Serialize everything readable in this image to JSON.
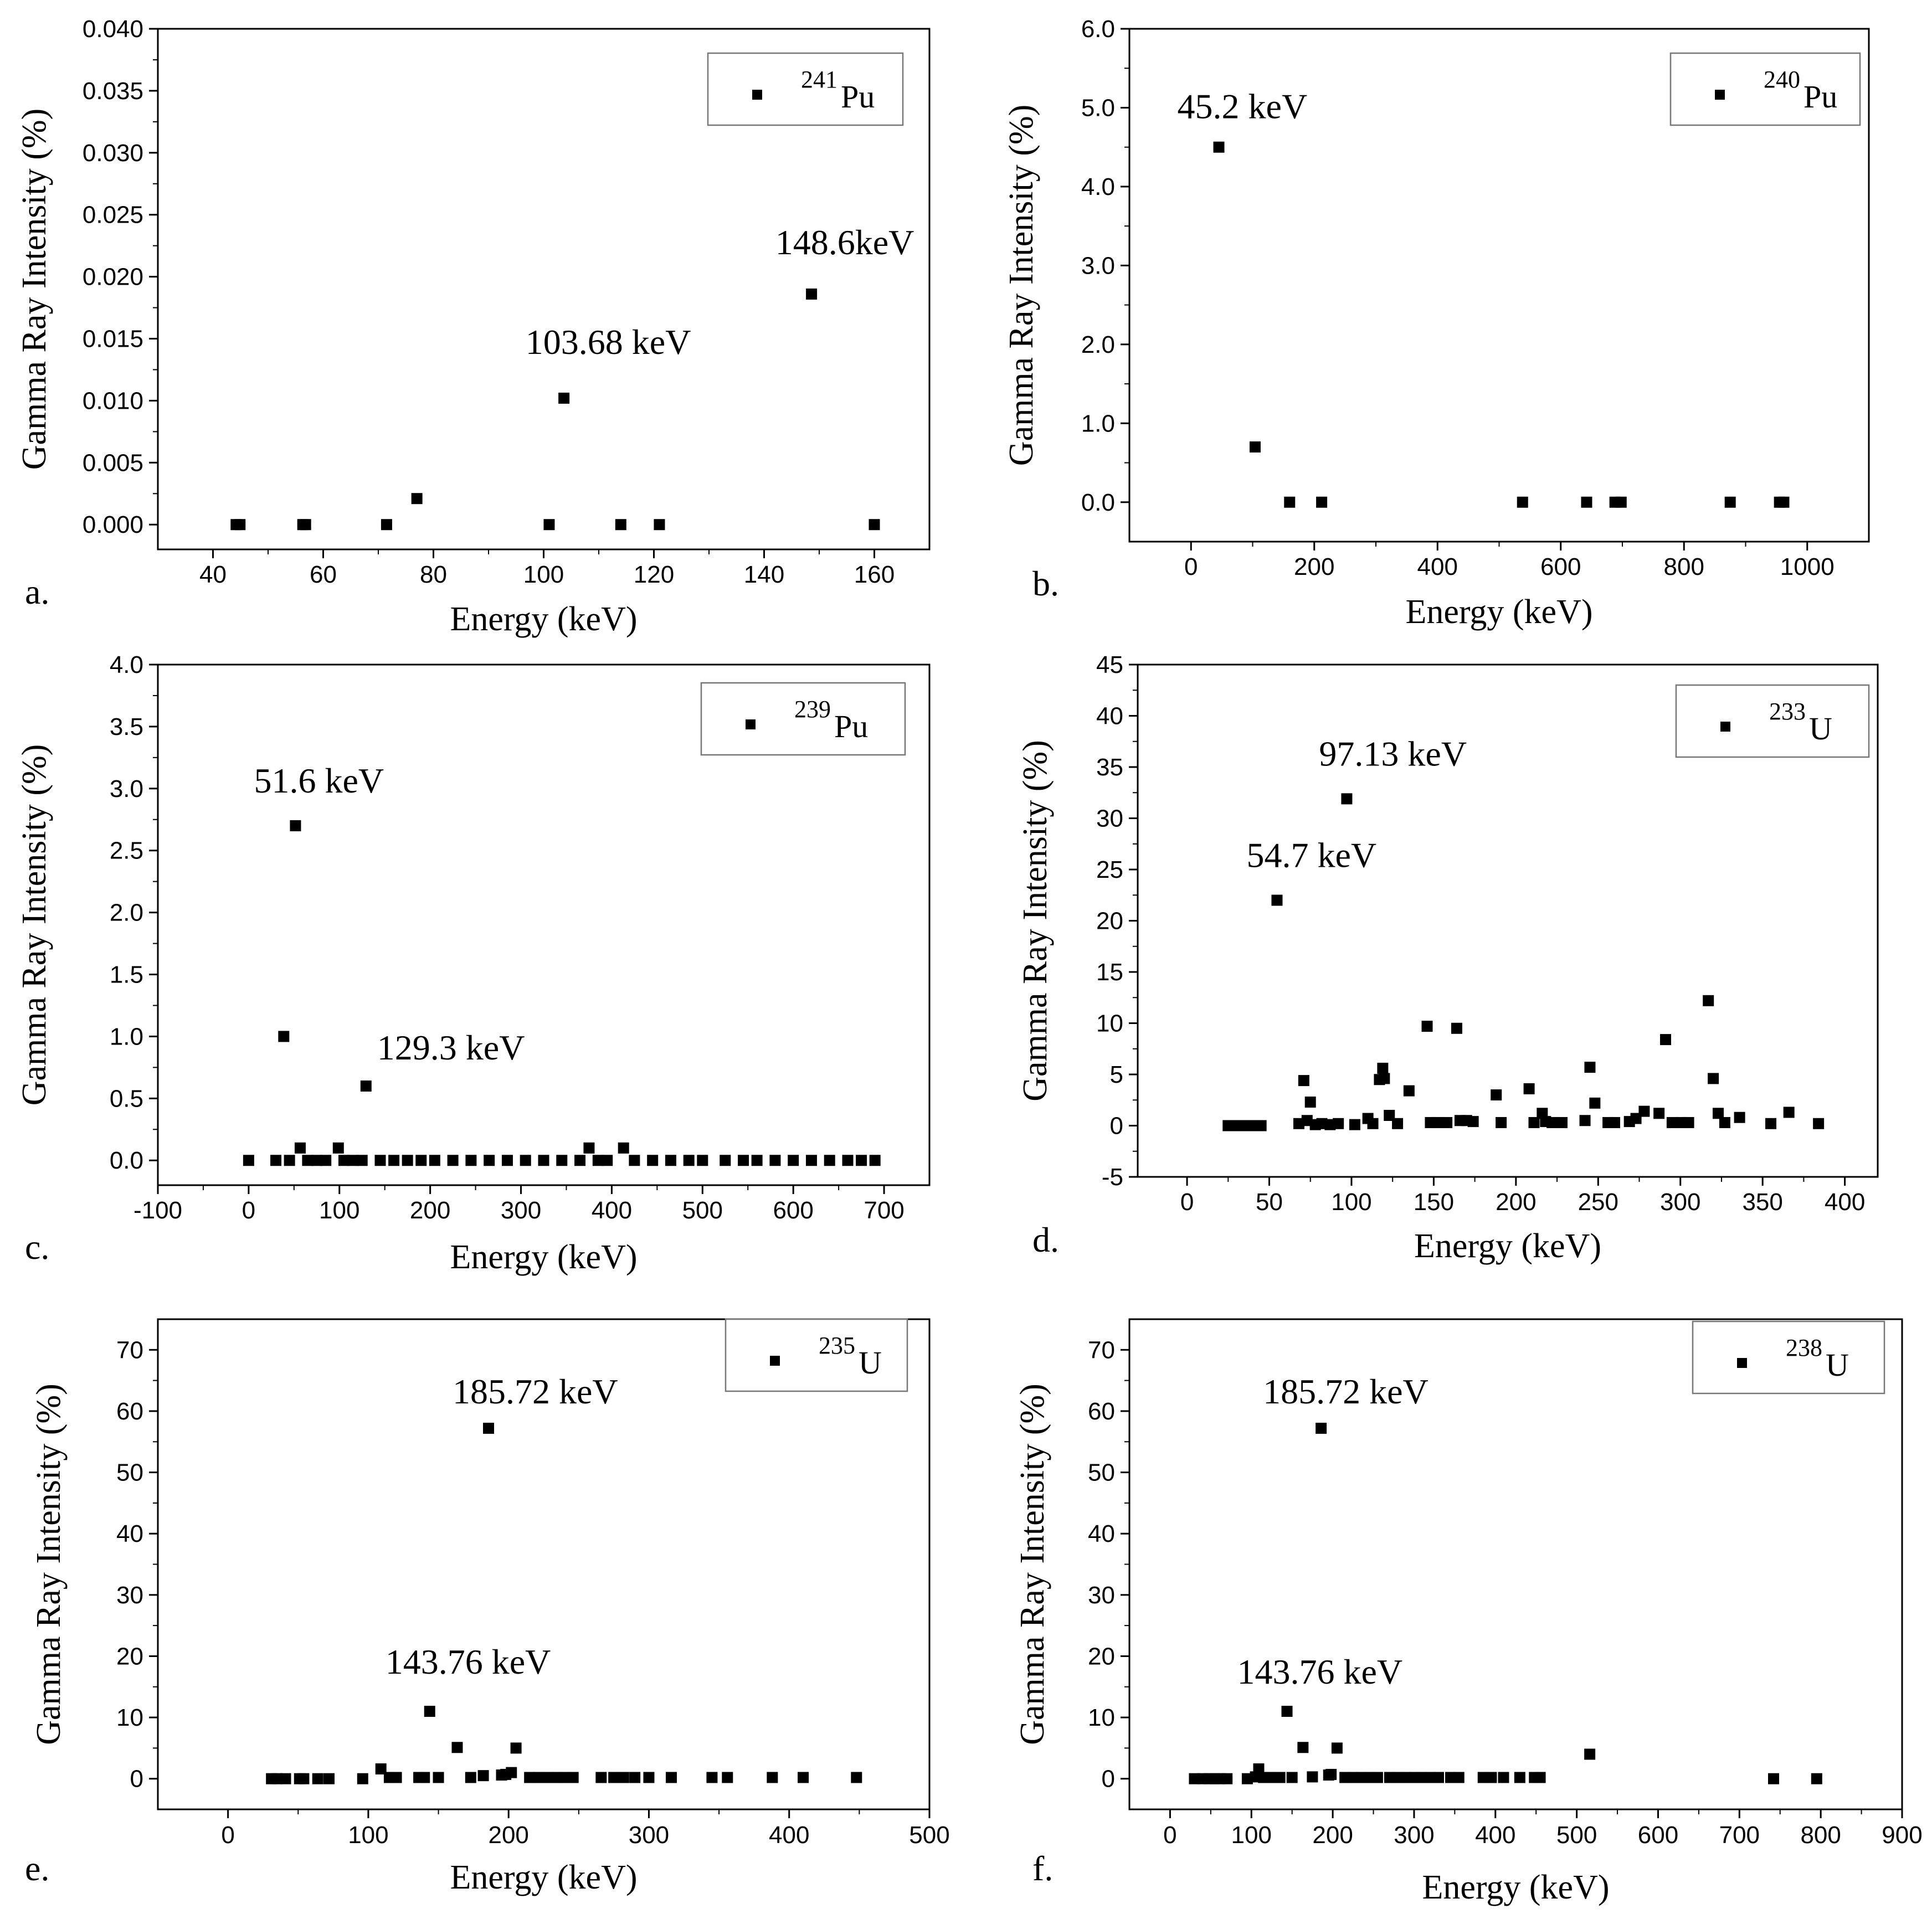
{
  "figure": {
    "panels": [
      {
        "id": "a",
        "label": "a.",
        "nuclide_mass": "241",
        "nuclide_symbol": "Pu",
        "y_label": "Gamma Ray Intensity (%)",
        "x_label": "Energy (keV)"
      },
      {
        "id": "b",
        "label": "b.",
        "nuclide_mass": "240",
        "nuclide_symbol": "Pu",
        "y_label": "Gamma Ray Intensity (%)",
        "x_label": "Energy (keV)"
      },
      {
        "id": "c",
        "label": "c.",
        "nuclide_mass": "239",
        "nuclide_symbol": "Pu",
        "y_label": "Gamma Ray Intensity (%)",
        "x_label": "Energy (keV)"
      },
      {
        "id": "d",
        "label": "d.",
        "nuclide_mass": "233",
        "nuclide_symbol": "U",
        "y_label": "Gamma Ray Intensity (%)",
        "x_label": "Energy (keV)"
      },
      {
        "id": "e",
        "label": "e.",
        "nuclide_mass": "235",
        "nuclide_symbol": "U",
        "y_label": "Gamma Ray Intensity (%)",
        "x_label": "Energy (keV)"
      },
      {
        "id": "f",
        "label": "f.",
        "nuclide_mass": "238",
        "nuclide_symbol": "U",
        "y_label": "Gamma Ray Intensity (%)",
        "x_label": "Energy (keV)"
      }
    ]
  },
  "chart_data": [
    {
      "type": "scatter",
      "panel": "a",
      "title": "",
      "xlabel": "Energy (keV)",
      "ylabel": "Gamma Ray Intensity (%)",
      "xlim": [
        30,
        170
      ],
      "ylim": [
        -0.002,
        0.04
      ],
      "xticks": [
        40,
        60,
        80,
        100,
        120,
        140,
        160
      ],
      "yticks": [
        0.0,
        0.005,
        0.01,
        0.015,
        0.02,
        0.025,
        0.03,
        0.035,
        0.04
      ],
      "ytick_labels": [
        "0.000",
        "0.005",
        "0.010",
        "0.015",
        "0.020",
        "0.025",
        "0.030",
        "0.035",
        "0.040"
      ],
      "legend": "241Pu",
      "legend_position": "top-right",
      "series": [
        {
          "name": "241Pu",
          "x": [
            44.2,
            44.9,
            56.3,
            56.8,
            71.5,
            77.0,
            101.0,
            103.68,
            114.0,
            121.0,
            148.6,
            160.0
          ],
          "y": [
            0,
            0,
            0,
            0,
            0,
            0.0021,
            0,
            0.0102,
            0,
            0,
            0.0186,
            0
          ]
        }
      ],
      "annotations": [
        {
          "text": "103.68 keV",
          "x": 103.68,
          "y": 0.0102
        },
        {
          "text": "148.6keV",
          "x": 148.6,
          "y": 0.0186
        }
      ]
    },
    {
      "type": "scatter",
      "panel": "b",
      "title": "",
      "xlabel": "Energy (keV)",
      "ylabel": "Gamma Ray Intensity (%)",
      "xlim": [
        -100,
        1100
      ],
      "ylim": [
        -0.5,
        6.0
      ],
      "xticks": [
        0,
        200,
        400,
        600,
        800,
        1000
      ],
      "yticks": [
        0,
        1,
        2,
        3,
        4,
        5,
        6
      ],
      "ytick_labels": [
        "0.0",
        "1.0",
        "2.0",
        "3.0",
        "4.0",
        "5.0",
        "6.0"
      ],
      "legend": "240Pu",
      "legend_position": "top-right",
      "series": [
        {
          "name": "240Pu",
          "x": [
            45.2,
            104,
            160,
            212,
            538,
            642,
            688,
            698,
            875,
            955,
            962
          ],
          "y": [
            4.5,
            0.7,
            0,
            0,
            0,
            0,
            0,
            0,
            0,
            0,
            0
          ]
        }
      ],
      "annotations": [
        {
          "text": "45.2 keV",
          "x": 45.2,
          "y": 4.5
        }
      ]
    },
    {
      "type": "scatter",
      "panel": "c",
      "title": "",
      "xlabel": "Energy (keV)",
      "ylabel": "Gamma Ray Intensity (%)",
      "xlim": [
        -100,
        750
      ],
      "ylim": [
        -0.2,
        4.0
      ],
      "xticks": [
        -100,
        0,
        100,
        200,
        300,
        400,
        500,
        600,
        700
      ],
      "yticks": [
        0,
        0.5,
        1.0,
        1.5,
        2.0,
        2.5,
        3.0,
        3.5,
        4.0
      ],
      "ytick_labels": [
        "0.0",
        "0.5",
        "1.0",
        "1.5",
        "2.0",
        "2.5",
        "3.0",
        "3.5",
        "4.0"
      ],
      "legend": "239Pu",
      "legend_position": "top-right",
      "series": [
        {
          "name": "239Pu",
          "x": [
            0,
            30,
            38.7,
            45,
            51.6,
            56.8,
            65,
            75,
            85,
            98.8,
            105,
            115,
            125,
            129.3,
            145,
            160,
            175,
            190,
            205,
            225,
            245,
            265,
            285,
            305,
            325,
            345,
            365,
            375,
            385,
            395,
            413,
            425,
            445,
            465,
            485,
            500,
            525,
            545,
            560,
            580,
            600,
            620,
            640,
            660,
            675,
            690
          ],
          "y": [
            0,
            0,
            1.0,
            0,
            2.7,
            0.1,
            0,
            0,
            0,
            0.1,
            0,
            0,
            0,
            0.6,
            0,
            0,
            0,
            0,
            0,
            0,
            0,
            0,
            0,
            0,
            0,
            0,
            0,
            0.1,
            0,
            0,
            0.1,
            0,
            0,
            0,
            0,
            0,
            0,
            0,
            0,
            0,
            0,
            0,
            0,
            0,
            0,
            0
          ]
        }
      ],
      "annotations": [
        {
          "text": "51.6 keV",
          "x": 51.6,
          "y": 2.7
        },
        {
          "text": "129.3 keV",
          "x": 129.3,
          "y": 0.6
        }
      ]
    },
    {
      "type": "scatter",
      "panel": "d",
      "title": "",
      "xlabel": "Energy (keV)",
      "ylabel": "Gamma Ray Intensity (%)",
      "xlim": [
        -30,
        420
      ],
      "ylim": [
        -5,
        45
      ],
      "xticks": [
        0,
        50,
        100,
        150,
        200,
        250,
        300,
        350,
        400
      ],
      "yticks": [
        -5,
        0,
        5,
        10,
        15,
        20,
        25,
        30,
        35,
        40,
        45
      ],
      "ytick_labels": [
        "-5",
        "0",
        "5",
        "10",
        "15",
        "20",
        "25",
        "30",
        "35",
        "40",
        "45"
      ],
      "legend": "233U",
      "legend_position": "top-right",
      "series": [
        {
          "name": "233U",
          "x": [
            25,
            30,
            35,
            40,
            45,
            54.7,
            68,
            71,
            73,
            75,
            78,
            82,
            87,
            92,
            97.13,
            102,
            110,
            113,
            117,
            119,
            120,
            123,
            128,
            135,
            146,
            148,
            152,
            158,
            164,
            166,
            170,
            174,
            188,
            191,
            208,
            211,
            216,
            218,
            222,
            228,
            242,
            245,
            248,
            256,
            260,
            269,
            273,
            278,
            287,
            291,
            295,
            301,
            305,
            317,
            320,
            323,
            327,
            336,
            355,
            366,
            384
          ],
          "y": [
            0,
            0,
            0,
            0,
            0,
            22.0,
            0.2,
            4.4,
            0.5,
            2.3,
            0.1,
            0.2,
            0.1,
            0.2,
            31.9,
            0.1,
            0.7,
            0.2,
            4.5,
            5.6,
            4.6,
            1.0,
            0.2,
            3.4,
            9.7,
            0.3,
            0.3,
            0.3,
            9.5,
            0.5,
            0.5,
            0.4,
            3.0,
            0.3,
            3.6,
            0.3,
            1.2,
            0.4,
            0.3,
            0.3,
            0.5,
            5.7,
            2.2,
            0.3,
            0.3,
            0.4,
            0.7,
            1.4,
            1.2,
            8.4,
            0.3,
            0.3,
            0.3,
            12.2,
            4.6,
            1.2,
            0.3,
            0.8,
            0.2,
            1.3,
            0.2
          ]
        }
      ],
      "annotations": [
        {
          "text": "97.13 keV",
          "x": 97.13,
          "y": 31.9
        },
        {
          "text": "54.7 keV",
          "x": 54.7,
          "y": 22.0
        }
      ]
    },
    {
      "type": "scatter",
      "panel": "e",
      "title": "",
      "xlabel": "Energy (keV)",
      "ylabel": "Gamma Ray Intensity (%)",
      "xlim": [
        -50,
        500
      ],
      "ylim": [
        -5,
        75
      ],
      "xticks": [
        0,
        100,
        200,
        300,
        400,
        500
      ],
      "yticks": [
        0,
        10,
        20,
        30,
        40,
        50,
        60,
        70
      ],
      "ytick_labels": [
        "0",
        "10",
        "20",
        "30",
        "40",
        "50",
        "60",
        "70"
      ],
      "legend": "235U",
      "legend_position": "top-right",
      "series": [
        {
          "name": "235U",
          "x": [
            31,
            35,
            41,
            51,
            54,
            64,
            72,
            96,
            109,
            115,
            120,
            136,
            140,
            143.76,
            150,
            163.4,
            173,
            182,
            185.72,
            195,
            198,
            202,
            205.3,
            215,
            221,
            228,
            235,
            240,
            246,
            266,
            275,
            282,
            290,
            300,
            316,
            345,
            356,
            388,
            410,
            448
          ],
          "y": [
            0,
            0,
            0,
            0,
            0,
            0,
            0,
            0,
            1.6,
            0.2,
            0.2,
            0.2,
            0.2,
            11.0,
            0.2,
            5.1,
            0.2,
            0.5,
            57.2,
            0.6,
            0.7,
            1.0,
            5.0,
            0.2,
            0.2,
            0.2,
            0.2,
            0.2,
            0.2,
            0.2,
            0.2,
            0.2,
            0.2,
            0.2,
            0.2,
            0.2,
            0.2,
            0.2,
            0.2,
            0.2
          ]
        }
      ],
      "annotations": [
        {
          "text": "185.72 keV",
          "x": 185.72,
          "y": 57.2
        },
        {
          "text": "143.76 keV",
          "x": 143.76,
          "y": 11.0
        }
      ]
    },
    {
      "type": "scatter",
      "panel": "f",
      "title": "",
      "xlabel": "Energy (keV)",
      "ylabel": "Gamma Ray Intensity (%)",
      "xlim": [
        -50,
        900
      ],
      "ylim": [
        -5,
        75
      ],
      "xticks": [
        0,
        100,
        200,
        300,
        400,
        500,
        600,
        700,
        800,
        900
      ],
      "yticks": [
        0,
        10,
        20,
        30,
        40,
        50,
        60,
        70
      ],
      "ytick_labels": [
        "0",
        "10",
        "20",
        "30",
        "40",
        "50",
        "60",
        "70"
      ],
      "legend": "238U",
      "legend_position": "top-right",
      "series": [
        {
          "name": "238U",
          "x": [
            30,
            40,
            48,
            55,
            62,
            70,
            95,
            105,
            109,
            115,
            123,
            135,
            143.76,
            150,
            163.4,
            175,
            185.72,
            195,
            198,
            205.3,
            215,
            225,
            235,
            245,
            255,
            270,
            280,
            290,
            300,
            310,
            320,
            330,
            345,
            355,
            385,
            395,
            410,
            430,
            448,
            455,
            516,
            742,
            795
          ],
          "y": [
            0,
            0,
            0,
            0,
            0,
            0,
            0,
            0.3,
            1.6,
            0.2,
            0.2,
            0.2,
            11.0,
            0.2,
            5.1,
            0.3,
            57.2,
            0.6,
            0.7,
            5.0,
            0.2,
            0.2,
            0.2,
            0.2,
            0.2,
            0.2,
            0.2,
            0.2,
            0.2,
            0.2,
            0.2,
            0.2,
            0.2,
            0.2,
            0.2,
            0.2,
            0.2,
            0.2,
            0.2,
            0.2,
            4.0,
            0,
            0
          ]
        }
      ],
      "annotations": [
        {
          "text": "185.72 keV",
          "x": 185.72,
          "y": 57.2
        },
        {
          "text": "143.76 keV",
          "x": 143.76,
          "y": 11.0
        }
      ]
    }
  ]
}
